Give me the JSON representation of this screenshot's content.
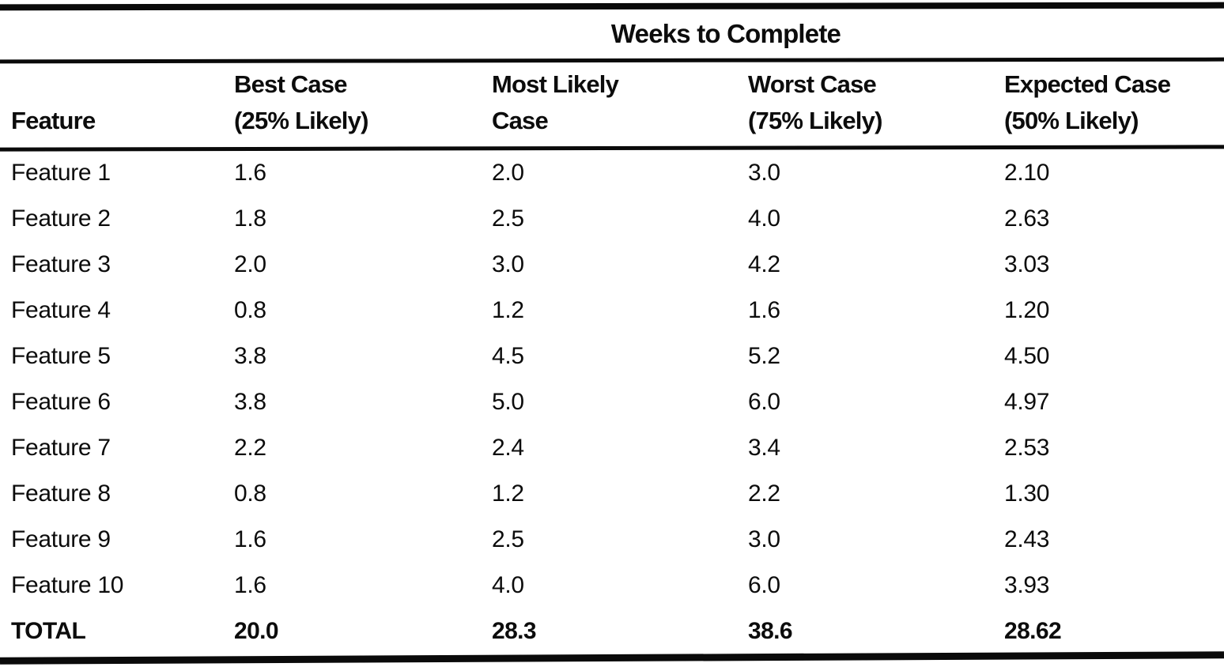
{
  "colors": {
    "ink": "#0c0c0c",
    "paper": "#ffffff"
  },
  "table": {
    "span_header": "Weeks to Complete",
    "columns": [
      {
        "lines": [
          "",
          "Feature"
        ]
      },
      {
        "lines": [
          "Best Case",
          "(25% Likely)"
        ]
      },
      {
        "lines": [
          "Most Likely",
          "Case"
        ]
      },
      {
        "lines": [
          "Worst Case",
          "(75% Likely)"
        ]
      },
      {
        "lines": [
          "Expected Case",
          "(50% Likely)"
        ]
      }
    ],
    "rows": [
      {
        "cells": [
          "Feature 1",
          "1.6",
          "2.0",
          "3.0",
          "2.10"
        ]
      },
      {
        "cells": [
          "Feature 2",
          "1.8",
          "2.5",
          "4.0",
          "2.63"
        ]
      },
      {
        "cells": [
          "Feature 3",
          "2.0",
          "3.0",
          "4.2",
          "3.03"
        ]
      },
      {
        "cells": [
          "Feature 4",
          "0.8",
          "1.2",
          "1.6",
          "1.20"
        ]
      },
      {
        "cells": [
          "Feature 5",
          "3.8",
          "4.5",
          "5.2",
          "4.50"
        ]
      },
      {
        "cells": [
          "Feature 6",
          "3.8",
          "5.0",
          "6.0",
          "4.97"
        ]
      },
      {
        "cells": [
          "Feature 7",
          "2.2",
          "2.4",
          "3.4",
          "2.53"
        ]
      },
      {
        "cells": [
          "Feature 8",
          "0.8",
          "1.2",
          "2.2",
          "1.30"
        ]
      },
      {
        "cells": [
          "Feature 9",
          "1.6",
          "2.5",
          "3.0",
          "2.43"
        ]
      },
      {
        "cells": [
          "Feature 10",
          "1.6",
          "4.0",
          "6.0",
          "3.93"
        ]
      },
      {
        "cells": [
          "TOTAL",
          "20.0",
          "28.3",
          "38.6",
          "28.62"
        ]
      }
    ]
  }
}
